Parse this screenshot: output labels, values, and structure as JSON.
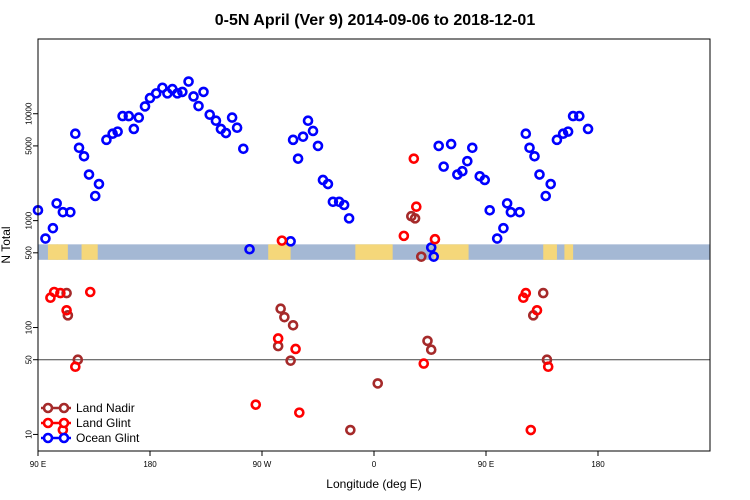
{
  "chart_data": {
    "type": "scatter",
    "title": "0-5N April (Ver 9)   2014-09-06 to 2018-12-01",
    "xlabel": "Longitude (deg E)",
    "ylabel": "N Total",
    "x_axis": {
      "range_label": "90 E to 90 E (wraps around the globe)",
      "x_range": [
        -90,
        450
      ],
      "ticks": [
        {
          "x": -90,
          "label": "90 E"
        },
        {
          "x": 0,
          "label": "180"
        },
        {
          "x": 90,
          "label": "90 W"
        },
        {
          "x": 180,
          "label": "0"
        },
        {
          "x": 270,
          "label": "90 E"
        },
        {
          "x": 360,
          "label": "180"
        }
      ]
    },
    "y_axis": {
      "scale": "log",
      "ylim": [
        7,
        50000
      ],
      "ticks": [
        {
          "y": 10,
          "label": "10"
        },
        {
          "y": 50,
          "label": "50"
        },
        {
          "y": 100,
          "label": "100"
        },
        {
          "y": 500,
          "label": "500"
        },
        {
          "y": 1000,
          "label": "1000"
        },
        {
          "y": 5000,
          "label": "5000"
        },
        {
          "y": 10000,
          "label": "10000"
        }
      ]
    },
    "reference_lines": [
      {
        "y": 50,
        "color": "#444444"
      }
    ],
    "land_mask_band": {
      "y_low": 430,
      "y_high": 600,
      "ocean_color": "#a4b8d4",
      "land_color": "#f5d77a",
      "land_segments": [
        [
          -82,
          -74
        ],
        [
          -75,
          -66
        ],
        [
          -55,
          -42
        ],
        [
          95,
          113
        ],
        [
          165,
          195
        ],
        [
          228,
          256
        ],
        [
          316,
          327
        ],
        [
          333,
          340
        ]
      ]
    },
    "legend": {
      "position": "bottom-left",
      "entries": [
        {
          "name": "Land Nadir",
          "color": "#a52a2a"
        },
        {
          "name": "Land Glint",
          "color": "#ff0000"
        },
        {
          "name": "Ocean Glint",
          "color": "#0000ff"
        }
      ]
    },
    "series": [
      {
        "name": "Ocean Glint",
        "color": "#0000ff",
        "points": [
          [
            -90,
            1250
          ],
          [
            -84,
            680
          ],
          [
            -78,
            850
          ],
          [
            -75,
            1450
          ],
          [
            -70,
            1200
          ],
          [
            -64,
            1200
          ],
          [
            -60,
            6500
          ],
          [
            -57,
            4800
          ],
          [
            -53,
            4000
          ],
          [
            -49,
            2700
          ],
          [
            -44,
            1700
          ],
          [
            -41,
            2200
          ],
          [
            -35,
            5700
          ],
          [
            -30,
            6500
          ],
          [
            -26,
            6800
          ],
          [
            -22,
            9500
          ],
          [
            -17,
            9500
          ],
          [
            -13,
            7200
          ],
          [
            -9,
            9200
          ],
          [
            -4,
            11700
          ],
          [
            0,
            14000
          ],
          [
            5,
            15500
          ],
          [
            10,
            17500
          ],
          [
            14,
            15500
          ],
          [
            18,
            17000
          ],
          [
            22,
            15500
          ],
          [
            26,
            16000
          ],
          [
            31,
            20000
          ],
          [
            35,
            14500
          ],
          [
            39,
            11800
          ],
          [
            43,
            16000
          ],
          [
            48,
            9800
          ],
          [
            53,
            8600
          ],
          [
            57,
            7200
          ],
          [
            61,
            6600
          ],
          [
            66,
            9200
          ],
          [
            70,
            7400
          ],
          [
            75,
            4700
          ],
          [
            80,
            540
          ],
          [
            113,
            640
          ],
          [
            115,
            5700
          ],
          [
            119,
            3800
          ],
          [
            123,
            6100
          ],
          [
            127,
            8600
          ],
          [
            131,
            6900
          ],
          [
            135,
            5000
          ],
          [
            139,
            2400
          ],
          [
            143,
            2200
          ],
          [
            147,
            1500
          ],
          [
            152,
            1500
          ],
          [
            156,
            1400
          ],
          [
            160,
            1050
          ],
          [
            226,
            560
          ],
          [
            228,
            460
          ],
          [
            232,
            5000
          ],
          [
            236,
            3200
          ],
          [
            242,
            5200
          ],
          [
            247,
            2700
          ],
          [
            251,
            2900
          ],
          [
            255,
            3600
          ],
          [
            259,
            4800
          ],
          [
            265,
            2600
          ],
          [
            269,
            2400
          ],
          [
            273,
            1250
          ],
          [
            279,
            680
          ],
          [
            284,
            850
          ],
          [
            287,
            1450
          ],
          [
            290,
            1200
          ],
          [
            297,
            1200
          ],
          [
            302,
            6500
          ],
          [
            305,
            4800
          ],
          [
            309,
            4000
          ],
          [
            313,
            2700
          ],
          [
            318,
            1700
          ],
          [
            322,
            2200
          ],
          [
            327,
            5700
          ],
          [
            332,
            6500
          ],
          [
            336,
            6800
          ],
          [
            340,
            9500
          ],
          [
            345,
            9500
          ],
          [
            352,
            7200
          ]
        ]
      },
      {
        "name": "Land Nadir",
        "color": "#a52a2a",
        "points": [
          [
            -67,
            210
          ],
          [
            -66,
            130
          ],
          [
            -58,
            50
          ],
          [
            105,
            150
          ],
          [
            108,
            125
          ],
          [
            115,
            105
          ],
          [
            103,
            67
          ],
          [
            113,
            49
          ],
          [
            210,
            1100
          ],
          [
            213,
            1050
          ],
          [
            218,
            460
          ],
          [
            223,
            75
          ],
          [
            226,
            62
          ],
          [
            161,
            11
          ],
          [
            183,
            30
          ],
          [
            316,
            210
          ],
          [
            308,
            130
          ],
          [
            319,
            50
          ]
        ]
      },
      {
        "name": "Land Glint",
        "color": "#ff0000",
        "points": [
          [
            -80,
            190
          ],
          [
            -77,
            215
          ],
          [
            -72,
            210
          ],
          [
            -67,
            145
          ],
          [
            -60,
            43
          ],
          [
            -70,
            11
          ],
          [
            -48,
            215
          ],
          [
            85,
            19
          ],
          [
            103,
            79
          ],
          [
            117,
            63
          ],
          [
            120,
            16
          ],
          [
            106,
            650
          ],
          [
            204,
            720
          ],
          [
            214,
            1350
          ],
          [
            212,
            3800
          ],
          [
            229,
            670
          ],
          [
            220,
            46
          ],
          [
            300,
            190
          ],
          [
            302,
            210
          ],
          [
            311,
            145
          ],
          [
            320,
            43
          ],
          [
            306,
            11
          ]
        ]
      }
    ]
  }
}
